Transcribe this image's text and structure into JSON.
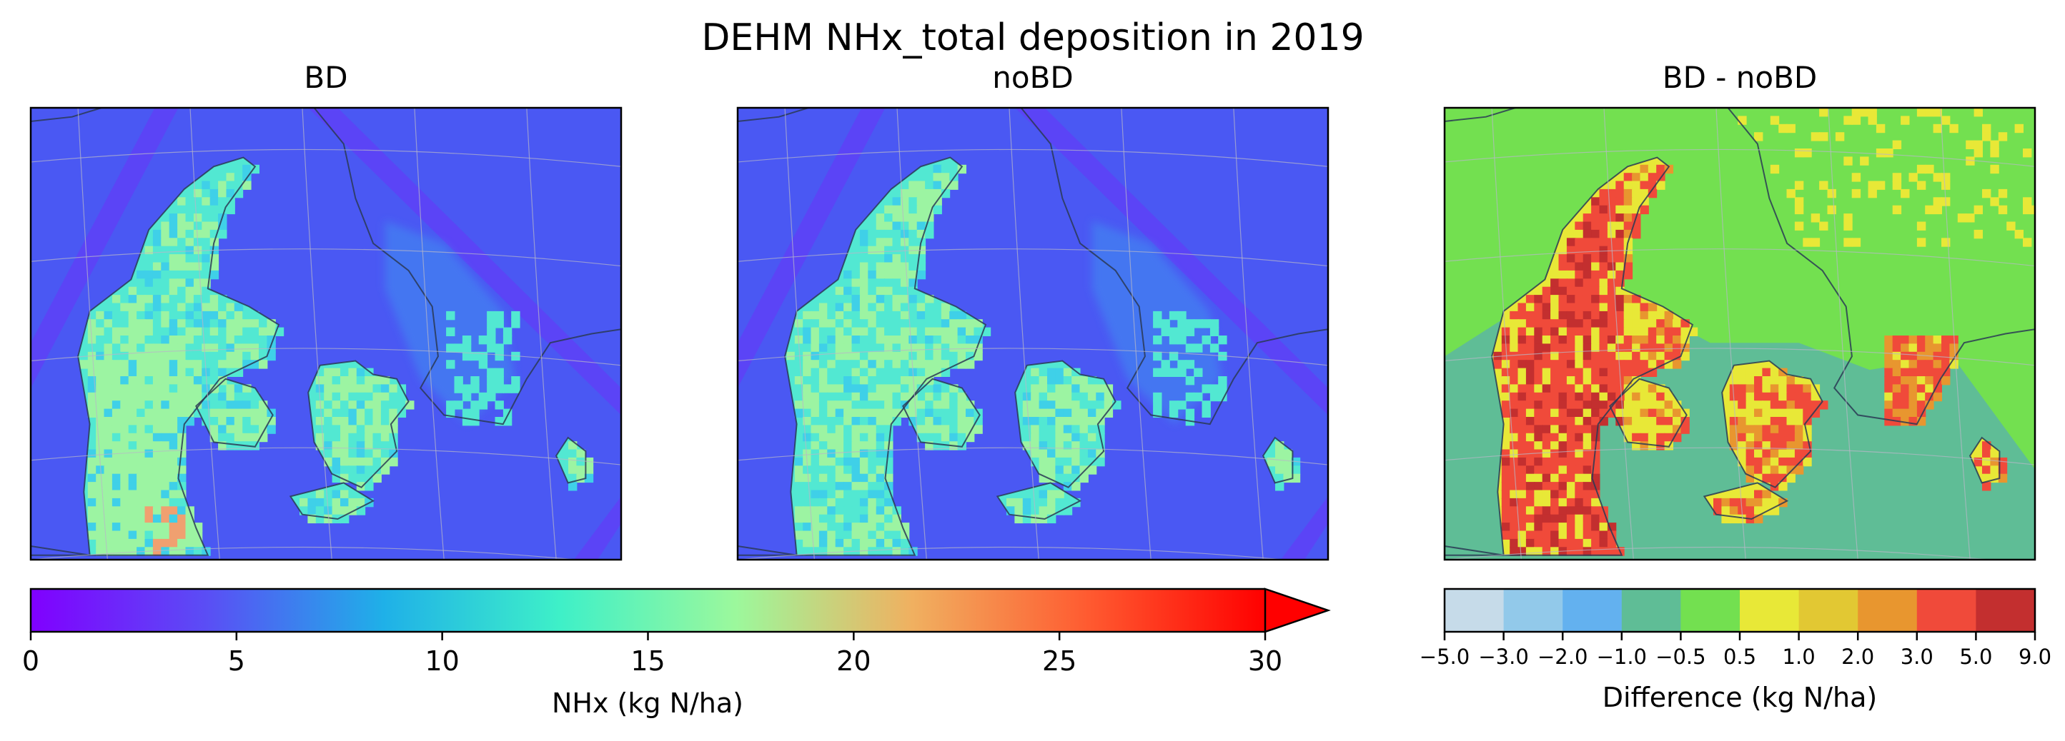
{
  "chart_data": {
    "type": "heatmap",
    "title": "DEHM NHx_total deposition in 2019",
    "panels": [
      {
        "title": "BD",
        "variable": "NHx_total deposition",
        "colorbar": "nhx"
      },
      {
        "title": "noBD",
        "variable": "NHx_total deposition",
        "colorbar": "nhx"
      },
      {
        "title": "BD - noBD",
        "variable": "difference",
        "colorbar": "diff"
      }
    ],
    "colorbars": {
      "nhx": {
        "label": "NHx (kg N/ha)",
        "range": [
          0,
          30
        ],
        "ticks": [
          0,
          5,
          10,
          15,
          20,
          25,
          30
        ],
        "tick_labels": [
          "0",
          "5",
          "10",
          "15",
          "20",
          "25",
          "30"
        ],
        "extend": "max",
        "colormap": "rainbow",
        "stops": [
          "#8000ff",
          "#5a4ef5",
          "#1fb0e8",
          "#3ef0c8",
          "#9cf89c",
          "#f0b060",
          "#ff5a30",
          "#ff0000"
        ]
      },
      "diff": {
        "label": "Difference (kg N/ha)",
        "bounds": [
          -5.0,
          -3.0,
          -2.0,
          -1.0,
          -0.5,
          0.5,
          1.0,
          2.0,
          3.0,
          5.0,
          9.0
        ],
        "tick_labels": [
          "−5.0",
          "−3.0",
          "−2.0",
          "−1.0",
          "−0.5",
          "0.5",
          "1.0",
          "2.0",
          "3.0",
          "5.0",
          "9.0"
        ],
        "colors": [
          "#c6dbe9",
          "#92c9ea",
          "#63b1ef",
          "#5fbd96",
          "#73e050",
          "#e8e837",
          "#e2c833",
          "#e8962f",
          "#f04a3a",
          "#c32f2f"
        ]
      }
    },
    "map_colors": {
      "sea_low": "#6a35f8",
      "sea": "#4a58f3",
      "land_mid": "#52e8d2",
      "land_high": "#9cf4a2",
      "hotspot": "#f0a070",
      "diff_base": "#73e050",
      "diff_sea": "#5fbd96",
      "diff_high": "#f04a3a",
      "diff_very_high": "#c32f2f",
      "diff_mid": "#e8e837",
      "coastline": "#2a3a55",
      "gridline": "#b8b8c8"
    }
  }
}
